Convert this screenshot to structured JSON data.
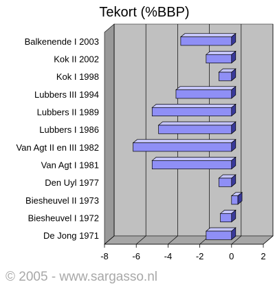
{
  "chart_data": {
    "type": "bar",
    "orientation": "horizontal",
    "title": "Tekort (%BBP)",
    "xlabel": "",
    "ylabel": "",
    "xlim": [
      -8,
      2
    ],
    "x_ticks": [
      "-8",
      "-6",
      "-4",
      "-2",
      "0",
      "2"
    ],
    "grid": true,
    "categories": [
      "Balkenende I 2003",
      "Kok II 2002",
      "Kok I 1998",
      "Lubbers III 1994",
      "Lubbers II 1989",
      "Lubbers I 1986",
      "Van Agt II en III 1982",
      "Van Agt I 1981",
      "Den Uyl 1977",
      "Biesheuvel II 1973",
      "Biesheuvel I 1972",
      "De Jong 1971"
    ],
    "values": [
      -3.2,
      -1.6,
      -0.8,
      -3.5,
      -5.0,
      -4.6,
      -6.2,
      -5.0,
      -0.8,
      0.4,
      -0.7,
      -1.6
    ],
    "colors": {
      "bar": "#8f8ff6",
      "bar_top": "#c4c4fb",
      "bar_side": "#3a3a9a",
      "plot_background": "#c0c0c0",
      "plot_wall": "#999999",
      "gridline": "#000000"
    }
  },
  "footer": {
    "copyright": "© 2005 - www.sargasso.nl"
  }
}
